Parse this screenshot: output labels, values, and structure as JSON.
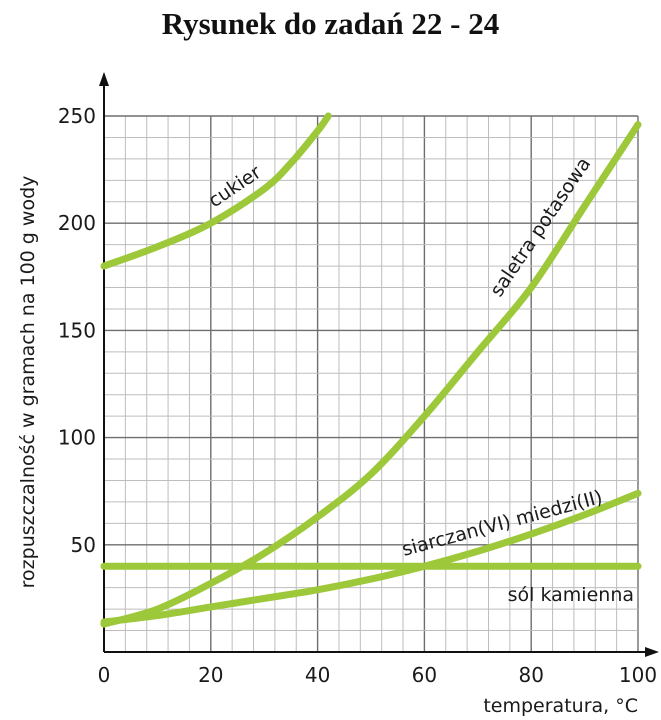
{
  "page": {
    "title": "Rysunek do zadań 22 - 24"
  },
  "chart_data": {
    "type": "line",
    "xlabel": "temperatura, °C",
    "ylabel": "rozpuszczalność w gramach na 100 g wody",
    "xlim": [
      0,
      100
    ],
    "ylim": [
      0,
      250
    ],
    "x_ticks": [
      0,
      20,
      40,
      60,
      80,
      100
    ],
    "y_ticks": [
      50,
      100,
      150,
      200,
      250
    ],
    "grid": true,
    "minor_grid_step": {
      "x": 4,
      "y": 10
    },
    "line_color": "#9cc83a",
    "series": [
      {
        "name": "cukier",
        "x": [
          0,
          10,
          20,
          30,
          35,
          40,
          42
        ],
        "y": [
          180,
          189,
          200,
          216,
          228,
          243,
          250
        ]
      },
      {
        "name": "saletra potasowa",
        "x": [
          0,
          10,
          20,
          30,
          40,
          50,
          60,
          70,
          80,
          90,
          100
        ],
        "y": [
          13,
          20,
          32,
          46,
          63,
          83,
          110,
          140,
          170,
          208,
          246
        ]
      },
      {
        "name": "siarczan(VI) miedzi(II)",
        "x": [
          0,
          10,
          20,
          30,
          40,
          50,
          60,
          70,
          80,
          90,
          100
        ],
        "y": [
          14,
          17,
          21,
          25,
          29,
          34,
          40,
          47,
          55,
          64,
          74
        ]
      },
      {
        "name": "sól kamienna",
        "x": [
          0,
          100
        ],
        "y": [
          40,
          40
        ]
      }
    ]
  }
}
